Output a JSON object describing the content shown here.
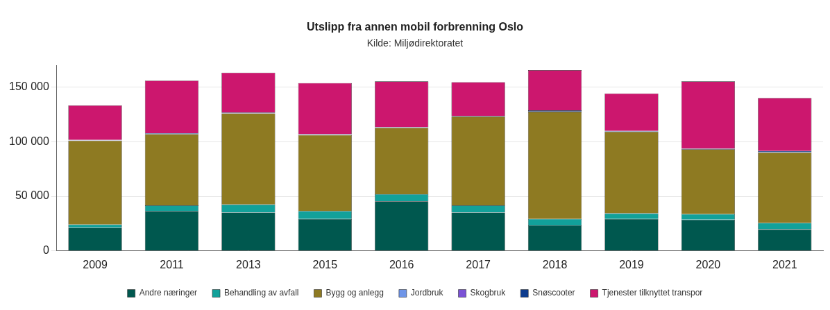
{
  "chart_data": {
    "type": "bar",
    "title": "Utslipp fra annen mobil forbrenning Oslo",
    "subtitle": "Kilde: Miljødirektoratet",
    "stacked": true,
    "grid": true,
    "legend": "bottom",
    "categories": [
      "2009",
      "2011",
      "2013",
      "2015",
      "2016",
      "2017",
      "2018",
      "2019",
      "2020",
      "2021"
    ],
    "series": [
      {
        "name": "Andre næringer",
        "color": "#00584f",
        "values": [
          21200,
          36600,
          35100,
          29300,
          45400,
          35100,
          23400,
          29300,
          28600,
          19800
        ]
      },
      {
        "name": "Behandling av avfall",
        "color": "#12a19a",
        "values": [
          3000,
          5100,
          7400,
          7300,
          6600,
          6600,
          5900,
          5100,
          5100,
          5800
        ]
      },
      {
        "name": "Bygg og anlegg",
        "color": "#8e7a22",
        "values": [
          76800,
          65200,
          83400,
          69500,
          60700,
          81300,
          98100,
          74700,
          59300,
          64400
        ]
      },
      {
        "name": "Jordbruk",
        "color": "#6f95e8",
        "values": [
          200,
          200,
          200,
          200,
          200,
          200,
          200,
          200,
          200,
          200
        ]
      },
      {
        "name": "Skogbruk",
        "color": "#7b52d6",
        "values": [
          100,
          100,
          100,
          100,
          100,
          100,
          100,
          100,
          100,
          100
        ]
      },
      {
        "name": "Snøscooter",
        "color": "#0d3c8e",
        "values": [
          300,
          400,
          400,
          400,
          300,
          400,
          1000,
          500,
          400,
          1200
        ]
      },
      {
        "name": "Tjenester tilknyttet transpor",
        "color": "#cc176e",
        "values": [
          31600,
          48300,
          36600,
          46900,
          41900,
          30800,
          36800,
          34300,
          61500,
          48500
        ]
      }
    ],
    "ylim": [
      0,
      170000
    ],
    "yticks": [
      0,
      {
        "value": 50000,
        "label": "50 000"
      },
      {
        "value": 100000,
        "label": "100 000"
      },
      {
        "value": 150000,
        "label": "150 000"
      }
    ]
  }
}
